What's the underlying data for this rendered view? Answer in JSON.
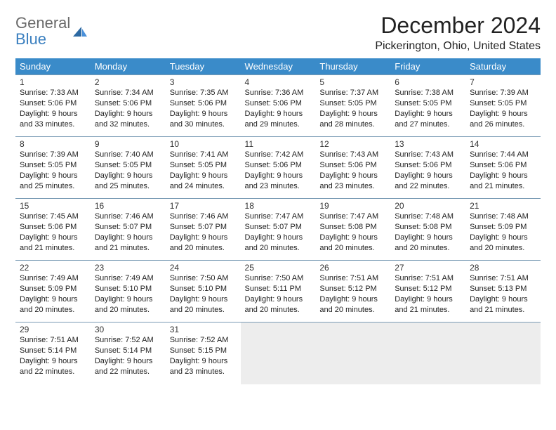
{
  "logo": {
    "general": "General",
    "blue": "Blue"
  },
  "title": "December 2024",
  "location": "Pickerington, Ohio, United States",
  "colors": {
    "header_bg": "#3a8bc9",
    "header_text": "#ffffff",
    "cell_border": "#7a9bb5",
    "empty_bg": "#ededed",
    "logo_gray": "#6a6a6a",
    "logo_blue": "#3a7fbf"
  },
  "weekdays": [
    "Sunday",
    "Monday",
    "Tuesday",
    "Wednesday",
    "Thursday",
    "Friday",
    "Saturday"
  ],
  "weeks": [
    [
      {
        "n": "1",
        "sr": "7:33 AM",
        "ss": "5:06 PM",
        "dl": "9 hours and 33 minutes."
      },
      {
        "n": "2",
        "sr": "7:34 AM",
        "ss": "5:06 PM",
        "dl": "9 hours and 32 minutes."
      },
      {
        "n": "3",
        "sr": "7:35 AM",
        "ss": "5:06 PM",
        "dl": "9 hours and 30 minutes."
      },
      {
        "n": "4",
        "sr": "7:36 AM",
        "ss": "5:06 PM",
        "dl": "9 hours and 29 minutes."
      },
      {
        "n": "5",
        "sr": "7:37 AM",
        "ss": "5:05 PM",
        "dl": "9 hours and 28 minutes."
      },
      {
        "n": "6",
        "sr": "7:38 AM",
        "ss": "5:05 PM",
        "dl": "9 hours and 27 minutes."
      },
      {
        "n": "7",
        "sr": "7:39 AM",
        "ss": "5:05 PM",
        "dl": "9 hours and 26 minutes."
      }
    ],
    [
      {
        "n": "8",
        "sr": "7:39 AM",
        "ss": "5:05 PM",
        "dl": "9 hours and 25 minutes."
      },
      {
        "n": "9",
        "sr": "7:40 AM",
        "ss": "5:05 PM",
        "dl": "9 hours and 25 minutes."
      },
      {
        "n": "10",
        "sr": "7:41 AM",
        "ss": "5:05 PM",
        "dl": "9 hours and 24 minutes."
      },
      {
        "n": "11",
        "sr": "7:42 AM",
        "ss": "5:06 PM",
        "dl": "9 hours and 23 minutes."
      },
      {
        "n": "12",
        "sr": "7:43 AM",
        "ss": "5:06 PM",
        "dl": "9 hours and 23 minutes."
      },
      {
        "n": "13",
        "sr": "7:43 AM",
        "ss": "5:06 PM",
        "dl": "9 hours and 22 minutes."
      },
      {
        "n": "14",
        "sr": "7:44 AM",
        "ss": "5:06 PM",
        "dl": "9 hours and 21 minutes."
      }
    ],
    [
      {
        "n": "15",
        "sr": "7:45 AM",
        "ss": "5:06 PM",
        "dl": "9 hours and 21 minutes."
      },
      {
        "n": "16",
        "sr": "7:46 AM",
        "ss": "5:07 PM",
        "dl": "9 hours and 21 minutes."
      },
      {
        "n": "17",
        "sr": "7:46 AM",
        "ss": "5:07 PM",
        "dl": "9 hours and 20 minutes."
      },
      {
        "n": "18",
        "sr": "7:47 AM",
        "ss": "5:07 PM",
        "dl": "9 hours and 20 minutes."
      },
      {
        "n": "19",
        "sr": "7:47 AM",
        "ss": "5:08 PM",
        "dl": "9 hours and 20 minutes."
      },
      {
        "n": "20",
        "sr": "7:48 AM",
        "ss": "5:08 PM",
        "dl": "9 hours and 20 minutes."
      },
      {
        "n": "21",
        "sr": "7:48 AM",
        "ss": "5:09 PM",
        "dl": "9 hours and 20 minutes."
      }
    ],
    [
      {
        "n": "22",
        "sr": "7:49 AM",
        "ss": "5:09 PM",
        "dl": "9 hours and 20 minutes."
      },
      {
        "n": "23",
        "sr": "7:49 AM",
        "ss": "5:10 PM",
        "dl": "9 hours and 20 minutes."
      },
      {
        "n": "24",
        "sr": "7:50 AM",
        "ss": "5:10 PM",
        "dl": "9 hours and 20 minutes."
      },
      {
        "n": "25",
        "sr": "7:50 AM",
        "ss": "5:11 PM",
        "dl": "9 hours and 20 minutes."
      },
      {
        "n": "26",
        "sr": "7:51 AM",
        "ss": "5:12 PM",
        "dl": "9 hours and 20 minutes."
      },
      {
        "n": "27",
        "sr": "7:51 AM",
        "ss": "5:12 PM",
        "dl": "9 hours and 21 minutes."
      },
      {
        "n": "28",
        "sr": "7:51 AM",
        "ss": "5:13 PM",
        "dl": "9 hours and 21 minutes."
      }
    ],
    [
      {
        "n": "29",
        "sr": "7:51 AM",
        "ss": "5:14 PM",
        "dl": "9 hours and 22 minutes."
      },
      {
        "n": "30",
        "sr": "7:52 AM",
        "ss": "5:14 PM",
        "dl": "9 hours and 22 minutes."
      },
      {
        "n": "31",
        "sr": "7:52 AM",
        "ss": "5:15 PM",
        "dl": "9 hours and 23 minutes."
      },
      null,
      null,
      null,
      null
    ]
  ],
  "labels": {
    "sunrise": "Sunrise:",
    "sunset": "Sunset:",
    "daylight": "Daylight:"
  }
}
